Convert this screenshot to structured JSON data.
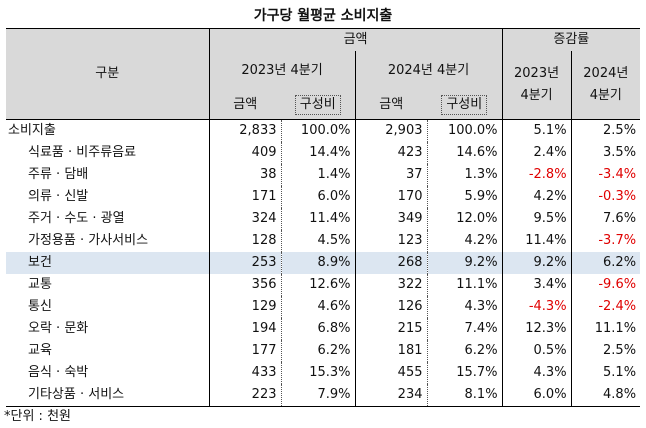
{
  "title": "가구당 월평균 소비지출",
  "header": {
    "category": "구분",
    "amount_group": "금액",
    "change_group": "증감률",
    "q2023": "2023년 4분기",
    "q2024": "2024년 4분기",
    "q2023_change": "2023년\n4분기",
    "q2024_change": "2024년\n4분기",
    "amount": "금액",
    "share": "구성비"
  },
  "rows": [
    {
      "label": "소비지출",
      "a23": "2,833",
      "s23": "100.0%",
      "a24": "2,903",
      "s24": "100.0%",
      "c23": "5.1%",
      "c24": "2.5%"
    },
    {
      "label": "식료품 · 비주류음료",
      "a23": "409",
      "s23": "14.4%",
      "a24": "423",
      "s24": "14.6%",
      "c23": "2.4%",
      "c24": "3.5%"
    },
    {
      "label": "주류 · 담배",
      "a23": "38",
      "s23": "1.4%",
      "a24": "37",
      "s24": "1.3%",
      "c23": "-2.8%",
      "c24": "-3.4%"
    },
    {
      "label": "의류 · 신발",
      "a23": "171",
      "s23": "6.0%",
      "a24": "170",
      "s24": "5.9%",
      "c23": "4.2%",
      "c24": "-0.3%"
    },
    {
      "label": "주거 · 수도 · 광열",
      "a23": "324",
      "s23": "11.4%",
      "a24": "349",
      "s24": "12.0%",
      "c23": "9.5%",
      "c24": "7.6%"
    },
    {
      "label": "가정용품 · 가사서비스",
      "a23": "128",
      "s23": "4.5%",
      "a24": "123",
      "s24": "4.2%",
      "c23": "11.4%",
      "c24": "-3.7%"
    },
    {
      "label": "보건",
      "a23": "253",
      "s23": "8.9%",
      "a24": "268",
      "s24": "9.2%",
      "c23": "9.2%",
      "c24": "6.2%"
    },
    {
      "label": "교통",
      "a23": "356",
      "s23": "12.6%",
      "a24": "322",
      "s24": "11.1%",
      "c23": "3.4%",
      "c24": "-9.6%"
    },
    {
      "label": "통신",
      "a23": "129",
      "s23": "4.6%",
      "a24": "126",
      "s24": "4.3%",
      "c23": "-4.3%",
      "c24": "-2.4%"
    },
    {
      "label": "오락 · 문화",
      "a23": "194",
      "s23": "6.8%",
      "a24": "215",
      "s24": "7.4%",
      "c23": "12.3%",
      "c24": "11.1%"
    },
    {
      "label": "교육",
      "a23": "177",
      "s23": "6.2%",
      "a24": "181",
      "s24": "6.2%",
      "c23": "0.5%",
      "c24": "2.5%"
    },
    {
      "label": "음식 · 숙박",
      "a23": "433",
      "s23": "15.3%",
      "a24": "455",
      "s24": "15.7%",
      "c23": "4.3%",
      "c24": "5.1%"
    },
    {
      "label": "기타상품 · 서비스",
      "a23": "223",
      "s23": "7.9%",
      "a24": "234",
      "s24": "8.1%",
      "c23": "6.0%",
      "c24": "4.8%"
    }
  ],
  "highlight_row": "보건",
  "negative_color": "#e00000",
  "highlight_color": "#dce6f1",
  "header_color": "#d9d9d9",
  "note": "*단위 : 천원"
}
